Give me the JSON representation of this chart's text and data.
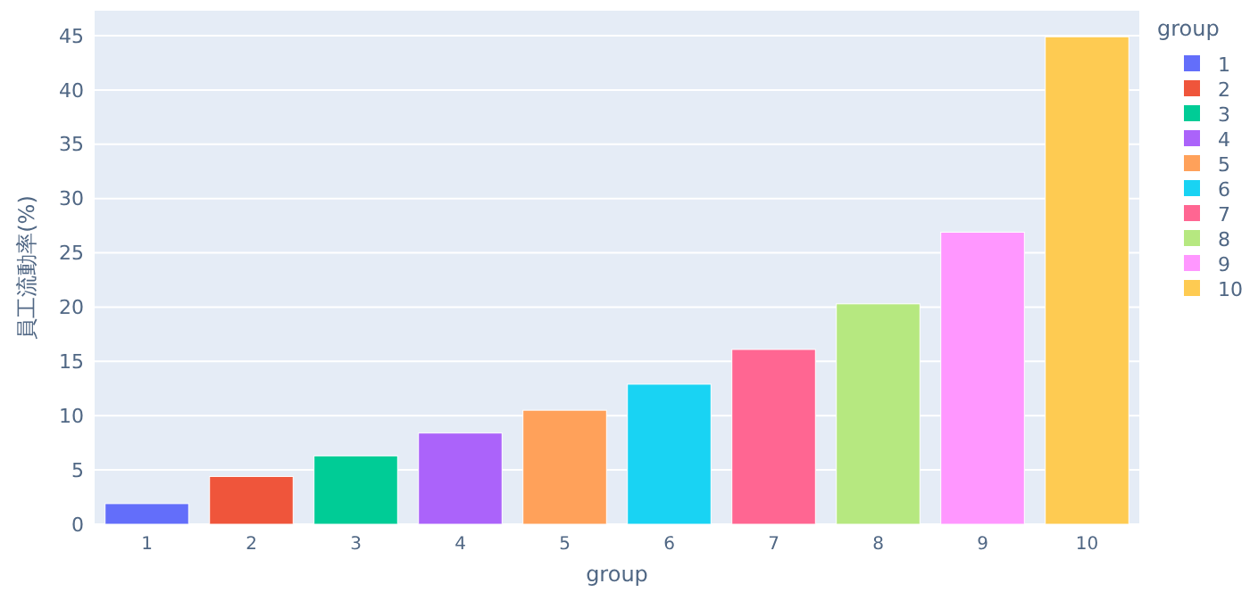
{
  "chart_data": {
    "type": "bar",
    "xlabel": "group",
    "ylabel": "員工流動率(%)",
    "legend_title": "group",
    "legend": "right",
    "grid": "y",
    "stacked": true,
    "categories": [
      "1",
      "2",
      "3",
      "4",
      "5",
      "6",
      "7",
      "8",
      "9",
      "10"
    ],
    "series": [
      {
        "name": "1",
        "color": "#636efa",
        "values": [
          1.9,
          null,
          null,
          null,
          null,
          null,
          null,
          null,
          null,
          null
        ]
      },
      {
        "name": "2",
        "color": "#ef553b",
        "values": [
          null,
          4.4,
          null,
          null,
          null,
          null,
          null,
          null,
          null,
          null
        ]
      },
      {
        "name": "3",
        "color": "#00cc96",
        "values": [
          null,
          null,
          6.3,
          null,
          null,
          null,
          null,
          null,
          null,
          null
        ]
      },
      {
        "name": "4",
        "color": "#ab63fa",
        "values": [
          null,
          null,
          null,
          8.4,
          null,
          null,
          null,
          null,
          null,
          null
        ]
      },
      {
        "name": "5",
        "color": "#ffa15a",
        "values": [
          null,
          null,
          null,
          null,
          10.5,
          null,
          null,
          null,
          null,
          null
        ]
      },
      {
        "name": "6",
        "color": "#19d3f3",
        "values": [
          null,
          null,
          null,
          null,
          null,
          12.9,
          null,
          null,
          null,
          null
        ]
      },
      {
        "name": "7",
        "color": "#ff6692",
        "values": [
          null,
          null,
          null,
          null,
          null,
          null,
          16.1,
          null,
          null,
          null
        ]
      },
      {
        "name": "8",
        "color": "#b6e880",
        "values": [
          null,
          null,
          null,
          null,
          null,
          null,
          null,
          20.3,
          null,
          null
        ]
      },
      {
        "name": "9",
        "color": "#ff97ff",
        "values": [
          null,
          null,
          null,
          null,
          null,
          null,
          null,
          null,
          26.9,
          null
        ]
      },
      {
        "name": "10",
        "color": "#fecb52",
        "values": [
          null,
          null,
          null,
          null,
          null,
          null,
          null,
          null,
          null,
          44.9
        ]
      }
    ],
    "ylim": [
      0,
      47.3
    ],
    "yticks": [
      0,
      5,
      10,
      15,
      20,
      25,
      30,
      35,
      40,
      45
    ]
  }
}
